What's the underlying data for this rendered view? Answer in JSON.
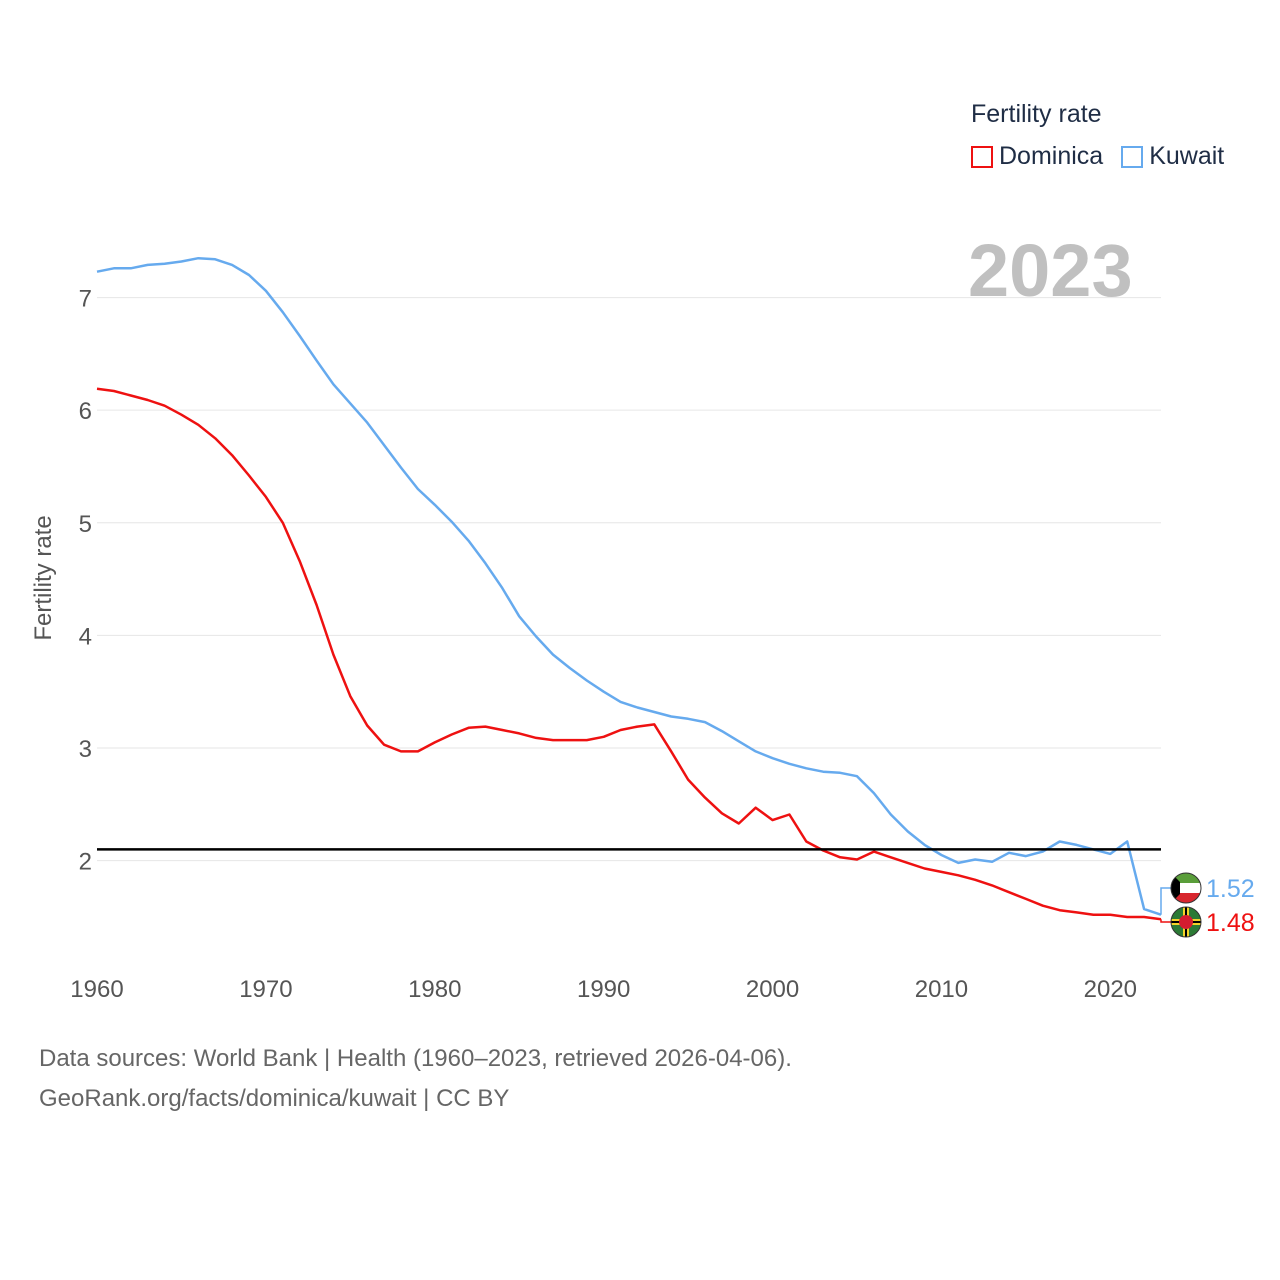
{
  "legend": {
    "title": "Fertility rate",
    "items": [
      {
        "label": "Dominica",
        "color": "#ee1111"
      },
      {
        "label": "Kuwait",
        "color": "#66aaee"
      }
    ]
  },
  "year_label": "2023",
  "footer": {
    "line1": "Data sources: World Bank | Health (1960–2023, retrieved 2026-04-06).",
    "line2": "GeoRank.org/facts/dominica/kuwait | CC BY"
  },
  "chart_data": {
    "type": "line",
    "ylabel": "Fertility rate",
    "xlabel": "",
    "xlim": [
      1960,
      2023
    ],
    "ylim": [
      1.1,
      7.6
    ],
    "x_ticks": [
      1960,
      1970,
      1980,
      1990,
      2000,
      2010,
      2020
    ],
    "y_ticks": [
      2,
      3,
      4,
      5,
      6,
      7
    ],
    "reference_line": 2.1,
    "x": [
      1960,
      1961,
      1962,
      1963,
      1964,
      1965,
      1966,
      1967,
      1968,
      1969,
      1970,
      1971,
      1972,
      1973,
      1974,
      1975,
      1976,
      1977,
      1978,
      1979,
      1980,
      1981,
      1982,
      1983,
      1984,
      1985,
      1986,
      1987,
      1988,
      1989,
      1990,
      1991,
      1992,
      1993,
      1994,
      1995,
      1996,
      1997,
      1998,
      1999,
      2000,
      2001,
      2002,
      2003,
      2004,
      2005,
      2006,
      2007,
      2008,
      2009,
      2010,
      2011,
      2012,
      2013,
      2014,
      2015,
      2016,
      2017,
      2018,
      2019,
      2020,
      2021,
      2022,
      2023
    ],
    "series": [
      {
        "name": "Dominica",
        "color": "#ee1111",
        "end_label": "1.48",
        "values": [
          6.19,
          6.17,
          6.13,
          6.09,
          6.04,
          5.96,
          5.87,
          5.75,
          5.6,
          5.42,
          5.23,
          5.0,
          4.66,
          4.27,
          3.83,
          3.46,
          3.2,
          3.03,
          2.97,
          2.97,
          3.05,
          3.12,
          3.18,
          3.19,
          3.16,
          3.13,
          3.09,
          3.07,
          3.07,
          3.07,
          3.1,
          3.16,
          3.19,
          3.21,
          2.97,
          2.72,
          2.56,
          2.42,
          2.33,
          2.47,
          2.36,
          2.41,
          2.17,
          2.09,
          2.03,
          2.01,
          2.08,
          2.03,
          1.98,
          1.93,
          1.9,
          1.87,
          1.83,
          1.78,
          1.72,
          1.66,
          1.6,
          1.56,
          1.54,
          1.52,
          1.52,
          1.5,
          1.5,
          1.48
        ]
      },
      {
        "name": "Kuwait",
        "color": "#66aaee",
        "end_label": "1.52",
        "values": [
          7.23,
          7.26,
          7.26,
          7.29,
          7.3,
          7.32,
          7.35,
          7.34,
          7.29,
          7.2,
          7.06,
          6.87,
          6.66,
          6.44,
          6.23,
          6.06,
          5.89,
          5.69,
          5.49,
          5.3,
          5.16,
          5.01,
          4.84,
          4.64,
          4.42,
          4.17,
          3.99,
          3.83,
          3.71,
          3.6,
          3.5,
          3.41,
          3.36,
          3.32,
          3.28,
          3.26,
          3.23,
          3.15,
          3.06,
          2.97,
          2.91,
          2.86,
          2.82,
          2.79,
          2.78,
          2.75,
          2.6,
          2.41,
          2.26,
          2.14,
          2.05,
          1.98,
          2.01,
          1.99,
          2.07,
          2.04,
          2.08,
          2.17,
          2.14,
          2.1,
          2.06,
          2.17,
          1.57,
          1.52
        ]
      }
    ]
  }
}
